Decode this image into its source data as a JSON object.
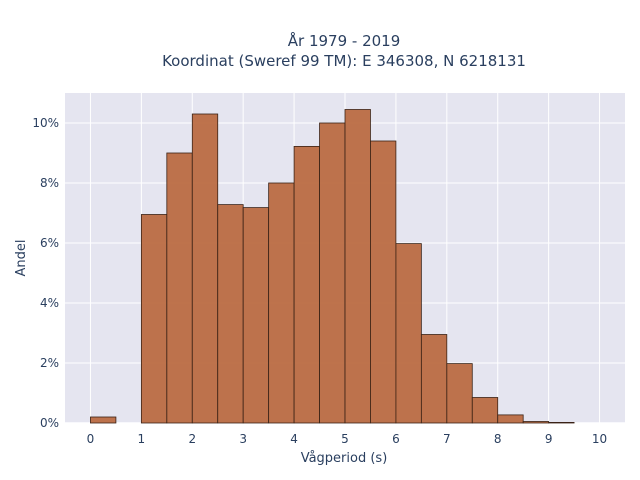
{
  "chart_data": {
    "type": "bar",
    "title": {
      "line1": "År 1979 - 2019",
      "line2": "Koordinat (Sweref 99 TM): E 346308, N 6218131"
    },
    "xlabel": "Vågperiod (s)",
    "ylabel": "Andel",
    "xlim": [
      -0.5,
      10.5
    ],
    "ylim": [
      0,
      0.11
    ],
    "x_ticks": [
      0,
      1,
      2,
      3,
      4,
      5,
      6,
      7,
      8,
      9,
      10
    ],
    "y_ticks": [
      {
        "value": 0,
        "label": "0%"
      },
      {
        "value": 0.02,
        "label": "2%"
      },
      {
        "value": 0.04,
        "label": "4%"
      },
      {
        "value": 0.06,
        "label": "6%"
      },
      {
        "value": 0.08,
        "label": "8%"
      },
      {
        "value": 0.1,
        "label": "10%"
      }
    ],
    "bin_width": 0.5,
    "bins": [
      {
        "start": 0.0,
        "value": 0.002
      },
      {
        "start": 1.0,
        "value": 0.0695
      },
      {
        "start": 1.5,
        "value": 0.09
      },
      {
        "start": 2.0,
        "value": 0.103
      },
      {
        "start": 2.5,
        "value": 0.0728
      },
      {
        "start": 3.0,
        "value": 0.0718
      },
      {
        "start": 3.5,
        "value": 0.08
      },
      {
        "start": 4.0,
        "value": 0.0922
      },
      {
        "start": 4.5,
        "value": 0.1
      },
      {
        "start": 5.0,
        "value": 0.1045
      },
      {
        "start": 5.5,
        "value": 0.094
      },
      {
        "start": 6.0,
        "value": 0.0598
      },
      {
        "start": 6.5,
        "value": 0.0295
      },
      {
        "start": 7.0,
        "value": 0.0198
      },
      {
        "start": 7.5,
        "value": 0.0085
      },
      {
        "start": 8.0,
        "value": 0.0027
      },
      {
        "start": 8.5,
        "value": 0.0005
      },
      {
        "start": 9.0,
        "value": 0.0002
      }
    ],
    "grid": true,
    "bar_color": "#b8653a",
    "bar_edge_color": "#3a2216",
    "plot_bg": "#e5e5f0"
  }
}
